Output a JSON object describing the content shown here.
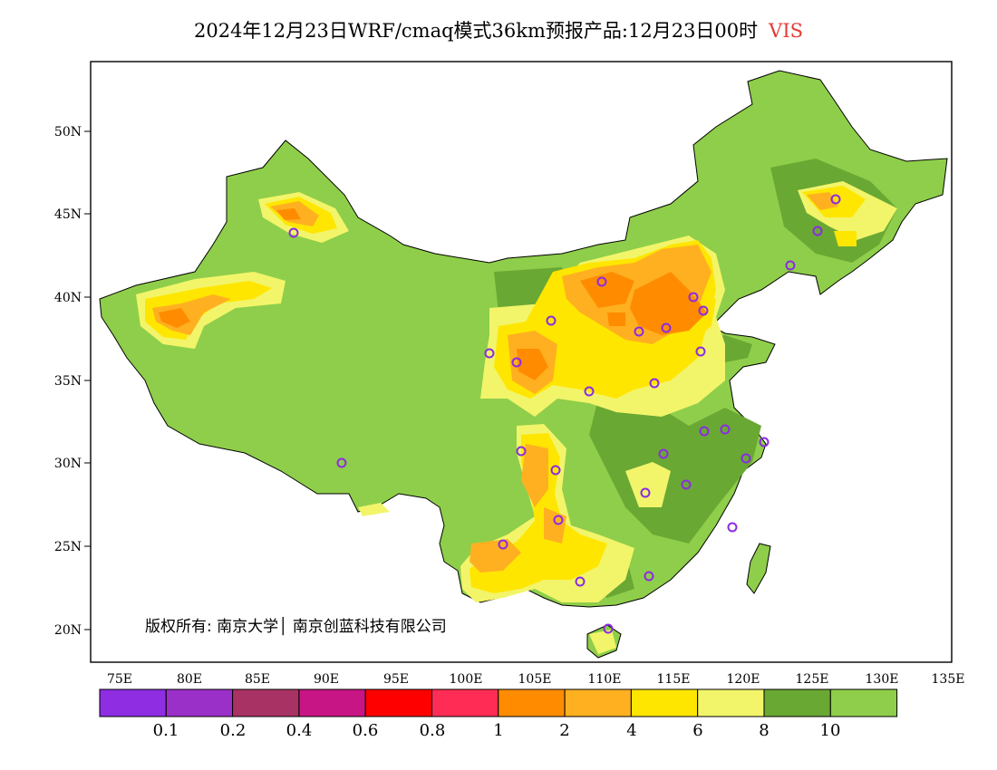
{
  "title": {
    "text": "2024年12月23日WRF/cmaq模式36km预报产品:12月23日00时",
    "variable": "VIS"
  },
  "axes": {
    "x_ticks": [
      "75E",
      "80E",
      "85E",
      "90E",
      "95E",
      "100E",
      "105E",
      "110E",
      "115E",
      "120E",
      "125E",
      "130E",
      "135E"
    ],
    "y_ticks": [
      "50N",
      "45N",
      "40N",
      "35N",
      "30N",
      "25N",
      "20N"
    ]
  },
  "copyright": "版权所有: 南京大学│ 南京创蓝科技有限公司",
  "legend": {
    "colors": [
      "#8e2de2",
      "#9b30c8",
      "#a83263",
      "#c71585",
      "#ff0000",
      "#ff2d55",
      "#ff8c00",
      "#ffb020",
      "#ffe600",
      "#f2f56a",
      "#6aa834",
      "#8fce4a"
    ],
    "labels": [
      "0.1",
      "0.2",
      "0.4",
      "0.6",
      "0.8",
      "1",
      "2",
      "4",
      "6",
      "8",
      "10"
    ]
  },
  "colors": {
    "land_green": "#8fce4a",
    "dark_green": "#6aa834",
    "light_yellow": "#f2f56a",
    "yellow": "#ffe600",
    "light_orange": "#ffb020",
    "orange": "#ff8c00",
    "city_marker": "#8b2be2"
  }
}
